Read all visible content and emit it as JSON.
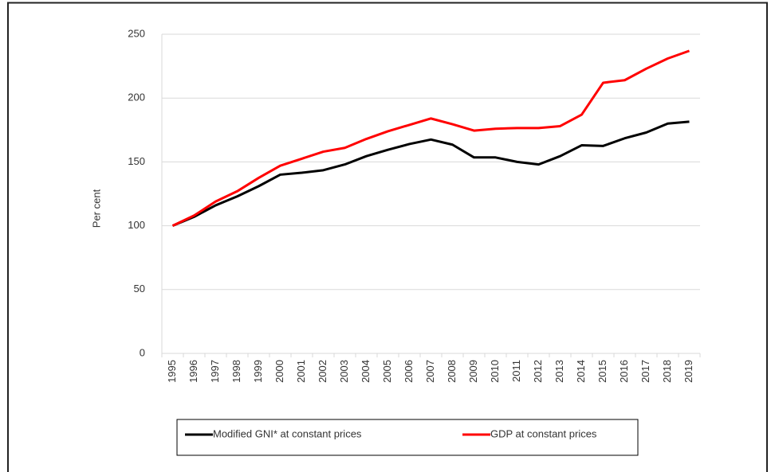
{
  "chart_data": {
    "type": "line",
    "y_label": "Per cent",
    "categories": [
      "1995",
      "1996",
      "1997",
      "1998",
      "1999",
      "2000",
      "2001",
      "2002",
      "2003",
      "2004",
      "2005",
      "2006",
      "2007",
      "2008",
      "2009",
      "2010",
      "2011",
      "2012",
      "2013",
      "2014",
      "2015",
      "2016",
      "2017",
      "2018",
      "2019"
    ],
    "series": [
      {
        "name": "Modified GNI* at constant prices",
        "color": "#000000",
        "values": [
          100,
          107,
          116,
          123,
          131,
          140,
          141.5,
          143.5,
          148,
          154.5,
          159.5,
          164,
          167.5,
          163.5,
          153.5,
          153.5,
          150,
          148,
          154.5,
          163,
          162.5,
          168.5,
          173,
          180,
          181.5
        ]
      },
      {
        "name": "GDP at constant prices",
        "color": "#ff0000",
        "values": [
          100,
          108,
          119,
          127,
          137.5,
          147,
          152.5,
          158,
          161,
          168,
          174,
          179,
          184,
          179.5,
          174.5,
          176,
          176.5,
          176.5,
          178,
          187,
          212,
          214,
          223,
          231,
          237
        ]
      }
    ],
    "ylim": [
      0,
      250
    ],
    "yticks": [
      0,
      50,
      100,
      150,
      200,
      250
    ],
    "grid": true,
    "legend": "bottom"
  }
}
